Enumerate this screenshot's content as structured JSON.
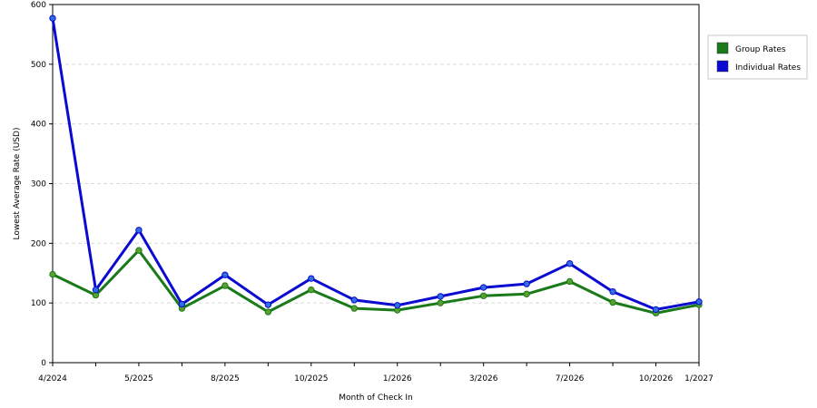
{
  "chart_data": {
    "type": "line",
    "xlabel": "Month of Check In",
    "ylabel": "Lowest Average Rate (USD)",
    "ylim": [
      0,
      600
    ],
    "yticks": [
      0,
      100,
      200,
      300,
      400,
      500,
      600
    ],
    "x_tick_labels": [
      {
        "label": "4/2024",
        "i": 0
      },
      {
        "label": "5/2025",
        "i": 2
      },
      {
        "label": "8/2025",
        "i": 4
      },
      {
        "label": "10/2025",
        "i": 6
      },
      {
        "label": "1/2026",
        "i": 8
      },
      {
        "label": "3/2026",
        "i": 10
      },
      {
        "label": "7/2026",
        "i": 12
      },
      {
        "label": "10/2026",
        "i": 14
      },
      {
        "label": "1/2027",
        "i": 15
      }
    ],
    "grid": "horizontal-dashed",
    "legend": "right",
    "series": [
      {
        "name": "Group Rates",
        "color": "#1a7a1a",
        "marker_color": "#5aa02c",
        "values": [
          148,
          113,
          188,
          91,
          129,
          85,
          122,
          91,
          88,
          100,
          112,
          115,
          136,
          101,
          83,
          97
        ]
      },
      {
        "name": "Individual Rates",
        "color": "#0a0ad0",
        "marker_color": "#2f6fe0",
        "values": [
          577,
          122,
          222,
          98,
          147,
          97,
          141,
          105,
          96,
          111,
          126,
          132,
          166,
          119,
          89,
          102
        ]
      }
    ]
  }
}
